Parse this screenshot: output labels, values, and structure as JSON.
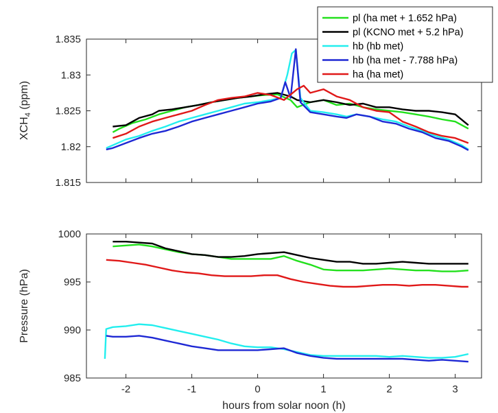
{
  "chart_data": [
    {
      "type": "line",
      "ylabel_main": "XCH",
      "ylabel_sub": "4",
      "ylabel_suffix": " (ppm)",
      "xlim": [
        -2.6,
        3.4
      ],
      "ylim": [
        1.815,
        1.835
      ],
      "yticks": [
        "1.815",
        "1.82",
        "1.825",
        "1.83",
        "1.835"
      ],
      "ytick_values": [
        1.815,
        1.82,
        1.825,
        1.83,
        1.835
      ],
      "xtick_values": [
        -2,
        -1,
        0,
        1,
        2,
        3
      ],
      "legend_position": "top-right",
      "series": [
        {
          "name": "pl (ha met + 1.652 hPa)",
          "color": "#22e01c",
          "x": [
            -2.2,
            -2.1,
            -1.9,
            -1.7,
            -1.5,
            -1.3,
            -1.1,
            -0.9,
            -0.7,
            -0.5,
            -0.3,
            -0.1,
            0.1,
            0.3,
            0.5,
            0.6,
            0.8,
            1.0,
            1.2,
            1.4,
            1.6,
            1.8,
            2.0,
            2.2,
            2.4,
            2.6,
            2.8,
            3.0,
            3.2
          ],
          "y": [
            1.822,
            1.8225,
            1.8233,
            1.8238,
            1.8245,
            1.825,
            1.8255,
            1.8258,
            1.8262,
            1.8265,
            1.8268,
            1.827,
            1.8272,
            1.8273,
            1.8265,
            1.8255,
            1.8262,
            1.8265,
            1.8258,
            1.826,
            1.8255,
            1.8252,
            1.825,
            1.8248,
            1.8245,
            1.8242,
            1.8238,
            1.8235,
            1.8225
          ]
        },
        {
          "name": "pl (KCNO met + 5.2 hPa)",
          "color": "#000000",
          "x": [
            -2.2,
            -2.0,
            -1.8,
            -1.6,
            -1.5,
            -1.3,
            -1.1,
            -0.9,
            -0.7,
            -0.5,
            -0.3,
            -0.1,
            0.1,
            0.3,
            0.5,
            0.6,
            0.8,
            1.0,
            1.2,
            1.4,
            1.6,
            1.8,
            2.0,
            2.2,
            2.4,
            2.6,
            2.8,
            3.0,
            3.2
          ],
          "y": [
            1.8228,
            1.823,
            1.824,
            1.8245,
            1.825,
            1.8252,
            1.8255,
            1.8258,
            1.8262,
            1.8265,
            1.8268,
            1.827,
            1.8273,
            1.8275,
            1.827,
            1.8265,
            1.8262,
            1.8265,
            1.8262,
            1.8258,
            1.826,
            1.8255,
            1.8255,
            1.8252,
            1.825,
            1.825,
            1.8248,
            1.8245,
            1.823
          ]
        },
        {
          "name": "hb (hb met)",
          "color": "#22eeee",
          "x": [
            -2.3,
            -2.2,
            -2.0,
            -1.8,
            -1.6,
            -1.4,
            -1.2,
            -1.0,
            -0.8,
            -0.6,
            -0.4,
            -0.2,
            0.0,
            0.2,
            0.35,
            0.45,
            0.52,
            0.58,
            0.65,
            0.8,
            1.0,
            1.2,
            1.35,
            1.5,
            1.7,
            1.9,
            2.1,
            2.3,
            2.5,
            2.7,
            2.9,
            3.1,
            3.2
          ],
          "y": [
            1.8198,
            1.8202,
            1.821,
            1.8215,
            1.8222,
            1.8228,
            1.8235,
            1.824,
            1.8245,
            1.825,
            1.8255,
            1.826,
            1.8262,
            1.8265,
            1.8268,
            1.83,
            1.833,
            1.8335,
            1.8268,
            1.825,
            1.8248,
            1.8245,
            1.8242,
            1.8245,
            1.8242,
            1.8238,
            1.8235,
            1.8228,
            1.8222,
            1.8215,
            1.821,
            1.8202,
            1.8196
          ]
        },
        {
          "name": "hb (ha met - 7.788 hPa)",
          "color": "#1e28d4",
          "x": [
            -2.3,
            -2.2,
            -2.0,
            -1.8,
            -1.6,
            -1.4,
            -1.2,
            -1.0,
            -0.8,
            -0.6,
            -0.4,
            -0.2,
            0.0,
            0.2,
            0.35,
            0.42,
            0.5,
            0.58,
            0.65,
            0.8,
            1.0,
            1.2,
            1.35,
            1.5,
            1.7,
            1.9,
            2.1,
            2.3,
            2.5,
            2.7,
            2.9,
            3.1,
            3.2
          ],
          "y": [
            1.8196,
            1.8198,
            1.8205,
            1.8212,
            1.8218,
            1.8222,
            1.8228,
            1.8235,
            1.824,
            1.8245,
            1.825,
            1.8255,
            1.826,
            1.8263,
            1.8268,
            1.829,
            1.8268,
            1.8336,
            1.8262,
            1.8248,
            1.8245,
            1.8242,
            1.824,
            1.8245,
            1.8242,
            1.8235,
            1.8232,
            1.8225,
            1.822,
            1.8212,
            1.8208,
            1.82,
            1.8195
          ]
        },
        {
          "name": "ha (ha met)",
          "color": "#e01818",
          "x": [
            -2.2,
            -2.0,
            -1.8,
            -1.6,
            -1.4,
            -1.2,
            -1.0,
            -0.8,
            -0.6,
            -0.4,
            -0.2,
            0.0,
            0.2,
            0.4,
            0.6,
            0.7,
            0.8,
            1.0,
            1.2,
            1.4,
            1.6,
            1.8,
            2.0,
            2.2,
            2.4,
            2.6,
            2.8,
            3.0,
            3.2
          ],
          "y": [
            1.8212,
            1.8218,
            1.8228,
            1.8235,
            1.824,
            1.8245,
            1.825,
            1.8258,
            1.8265,
            1.8268,
            1.827,
            1.8275,
            1.8272,
            1.8265,
            1.828,
            1.8285,
            1.8275,
            1.828,
            1.827,
            1.8265,
            1.8255,
            1.825,
            1.8248,
            1.8235,
            1.8228,
            1.822,
            1.8215,
            1.8212,
            1.8205
          ]
        }
      ]
    },
    {
      "type": "line",
      "ylabel": "Pressure (hPa)",
      "xlabel": "hours from solar noon (h)",
      "xlim": [
        -2.6,
        3.4
      ],
      "ylim": [
        985,
        1000
      ],
      "yticks": [
        "985",
        "990",
        "995",
        "1000"
      ],
      "ytick_values": [
        985,
        990,
        995,
        1000
      ],
      "xticks": [
        "-2",
        "-1",
        "0",
        "1",
        "2",
        "3"
      ],
      "xtick_values": [
        -2,
        -1,
        0,
        1,
        2,
        3
      ],
      "series": [
        {
          "name": "pl (ha met + 1.652 hPa)",
          "color": "#22e01c",
          "x": [
            -2.2,
            -2.0,
            -1.8,
            -1.6,
            -1.4,
            -1.2,
            -1.0,
            -0.8,
            -0.6,
            -0.4,
            -0.2,
            0.0,
            0.2,
            0.4,
            0.6,
            0.8,
            1.0,
            1.2,
            1.4,
            1.6,
            1.8,
            2.0,
            2.2,
            2.4,
            2.6,
            2.8,
            3.0,
            3.2
          ],
          "y": [
            998.7,
            998.8,
            998.9,
            998.7,
            998.4,
            998.1,
            997.9,
            997.8,
            997.6,
            997.4,
            997.4,
            997.4,
            997.4,
            997.7,
            997.2,
            996.8,
            996.3,
            996.2,
            996.2,
            996.2,
            996.3,
            996.4,
            996.3,
            996.2,
            996.2,
            996.1,
            996.1,
            996.2
          ]
        },
        {
          "name": "pl (KCNO met + 5.2 hPa)",
          "color": "#000000",
          "x": [
            -2.2,
            -2.0,
            -1.8,
            -1.6,
            -1.4,
            -1.2,
            -1.0,
            -0.8,
            -0.6,
            -0.4,
            -0.2,
            0.0,
            0.2,
            0.4,
            0.6,
            0.8,
            1.0,
            1.2,
            1.4,
            1.6,
            1.8,
            2.0,
            2.2,
            2.4,
            2.6,
            2.8,
            3.0,
            3.2
          ],
          "y": [
            999.2,
            999.2,
            999.1,
            999.0,
            998.5,
            998.2,
            997.9,
            997.8,
            997.6,
            997.6,
            997.7,
            997.9,
            998.0,
            998.1,
            997.8,
            997.5,
            997.3,
            997.1,
            997.1,
            996.9,
            996.9,
            997.0,
            997.1,
            997.0,
            996.9,
            996.9,
            996.9,
            996.9
          ]
        },
        {
          "name": "ha (ha met)",
          "color": "#e01818",
          "x": [
            -2.3,
            -2.1,
            -1.9,
            -1.7,
            -1.5,
            -1.3,
            -1.1,
            -0.9,
            -0.7,
            -0.5,
            -0.3,
            -0.1,
            0.1,
            0.3,
            0.5,
            0.7,
            0.9,
            1.1,
            1.3,
            1.5,
            1.7,
            1.9,
            2.1,
            2.3,
            2.5,
            2.7,
            2.9,
            3.1,
            3.2
          ],
          "y": [
            997.3,
            997.2,
            997.0,
            996.8,
            996.5,
            996.2,
            996.0,
            995.9,
            995.7,
            995.6,
            995.6,
            995.6,
            995.7,
            995.7,
            995.3,
            995.0,
            994.8,
            994.6,
            994.5,
            994.5,
            994.6,
            994.7,
            994.7,
            994.6,
            994.7,
            994.7,
            994.6,
            994.5,
            994.5
          ]
        },
        {
          "name": "hb (hb met)",
          "color": "#22eeee",
          "x": [
            -2.32,
            -2.3,
            -2.2,
            -2.0,
            -1.8,
            -1.6,
            -1.4,
            -1.2,
            -1.0,
            -0.8,
            -0.6,
            -0.4,
            -0.2,
            0.0,
            0.2,
            0.4,
            0.6,
            0.8,
            1.0,
            1.2,
            1.4,
            1.6,
            1.8,
            2.0,
            2.2,
            2.4,
            2.6,
            2.8,
            3.0,
            3.2
          ],
          "y": [
            987.0,
            990.1,
            990.3,
            990.4,
            990.6,
            990.5,
            990.2,
            989.9,
            989.6,
            989.3,
            989.0,
            988.6,
            988.3,
            988.2,
            988.2,
            988.0,
            987.7,
            987.4,
            987.3,
            987.3,
            987.3,
            987.3,
            987.3,
            987.2,
            987.3,
            987.2,
            987.1,
            987.1,
            987.2,
            987.5
          ]
        },
        {
          "name": "hb (ha met - 7.788 hPa)",
          "color": "#1e28d4",
          "x": [
            -2.3,
            -2.2,
            -2.0,
            -1.8,
            -1.6,
            -1.4,
            -1.2,
            -1.0,
            -0.8,
            -0.6,
            -0.4,
            -0.2,
            0.0,
            0.2,
            0.4,
            0.6,
            0.8,
            1.0,
            1.2,
            1.4,
            1.6,
            1.8,
            2.0,
            2.2,
            2.4,
            2.6,
            2.8,
            3.0,
            3.2
          ],
          "y": [
            989.4,
            989.3,
            989.3,
            989.4,
            989.2,
            988.9,
            988.6,
            988.3,
            988.1,
            987.9,
            987.9,
            987.9,
            987.9,
            988.0,
            988.1,
            987.6,
            987.3,
            987.1,
            987.0,
            987.0,
            987.0,
            987.0,
            987.0,
            987.0,
            986.9,
            986.8,
            986.9,
            986.8,
            986.7
          ]
        }
      ]
    }
  ]
}
